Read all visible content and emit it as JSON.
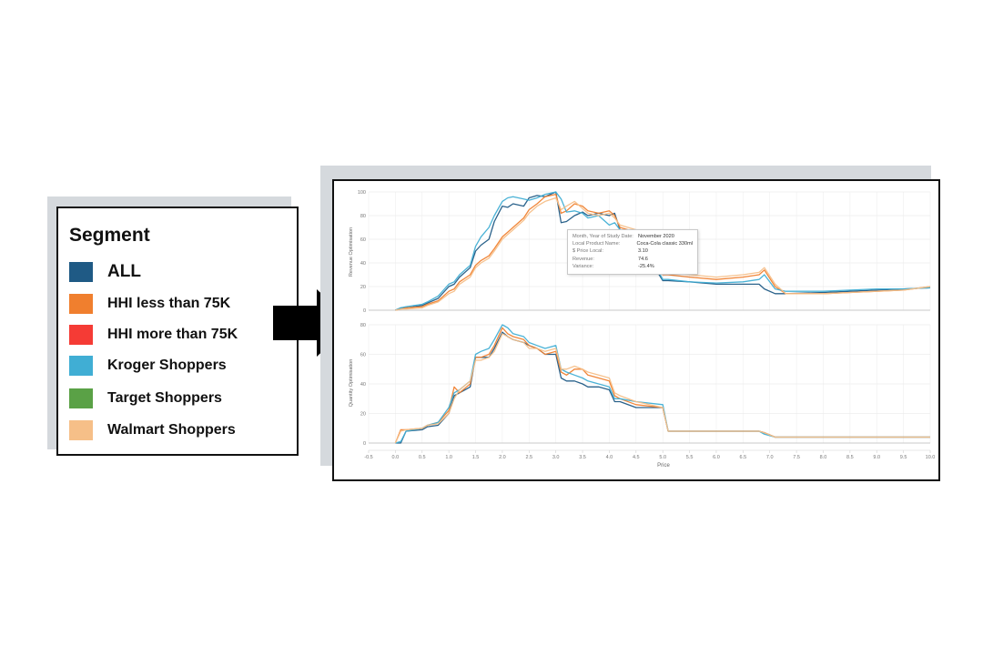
{
  "legend": {
    "title": "Segment",
    "items": [
      {
        "label": "ALL",
        "color": "#1f5a85"
      },
      {
        "label": "HHI less than 75K",
        "color": "#f07f2e"
      },
      {
        "label": "HHI more than 75K",
        "color": "#f53b35"
      },
      {
        "label": "Kroger Shoppers",
        "color": "#40aed4"
      },
      {
        "label": "Target Shoppers",
        "color": "#5aa146"
      },
      {
        "label": "Walmart Shoppers",
        "color": "#f6bf88"
      }
    ]
  },
  "tooltip": {
    "rows": [
      {
        "key": "Month, Year of Study Date:",
        "value": "November 2020"
      },
      {
        "key": "Local Product Name:",
        "value": "Coca-Cola classic 330ml"
      },
      {
        "key": "$ Price Local:",
        "value": "3.10"
      },
      {
        "key": "Revenue:",
        "value": "74.6"
      },
      {
        "key": "Variance:",
        "value": "-25.4%"
      }
    ]
  },
  "chart_data": [
    {
      "type": "line",
      "ylabel": "Revenue Optimisation",
      "xlim": [
        -0.5,
        10.0
      ],
      "ylim": [
        0,
        100
      ],
      "yticks": [
        0,
        20,
        40,
        60,
        80,
        100
      ],
      "grid": true,
      "x": [
        0.0,
        0.1,
        0.2,
        0.5,
        0.6,
        0.8,
        1.0,
        1.1,
        1.2,
        1.4,
        1.5,
        1.6,
        1.75,
        1.85,
        2.0,
        2.1,
        2.2,
        2.4,
        2.5,
        2.65,
        2.8,
        3.0,
        3.1,
        3.2,
        3.35,
        3.5,
        3.6,
        3.8,
        4.0,
        4.1,
        4.2,
        4.5,
        5.0,
        5.1,
        5.5,
        6.0,
        6.5,
        6.8,
        6.9,
        7.1,
        7.3,
        8.0,
        8.5,
        9.0,
        9.5,
        10.0
      ],
      "series": [
        {
          "name": "ALL",
          "color": "#1f5a85",
          "values": [
            0,
            2,
            2,
            4,
            6,
            10,
            20,
            22,
            28,
            36,
            50,
            55,
            60,
            75,
            88,
            87,
            90,
            88,
            95,
            97,
            96,
            100,
            74,
            75,
            80,
            83,
            80,
            82,
            80,
            82,
            68,
            62,
            25,
            25,
            24,
            22,
            22,
            22,
            18,
            14,
            14,
            15,
            16,
            17,
            18,
            19
          ]
        },
        {
          "name": "HHI less than 75K",
          "color": "#f07f2e",
          "values": [
            0,
            1,
            2,
            3,
            5,
            8,
            16,
            18,
            24,
            30,
            38,
            42,
            46,
            52,
            62,
            66,
            70,
            78,
            85,
            90,
            96,
            98,
            82,
            84,
            90,
            88,
            84,
            82,
            84,
            80,
            70,
            66,
            30,
            30,
            28,
            26,
            28,
            30,
            34,
            20,
            14,
            14,
            15,
            16,
            17,
            20
          ]
        },
        {
          "name": "Kroger Shoppers",
          "color": "#40aed4",
          "values": [
            0,
            2,
            3,
            5,
            7,
            12,
            22,
            24,
            30,
            38,
            54,
            62,
            70,
            80,
            92,
            95,
            96,
            94,
            93,
            95,
            98,
            100,
            94,
            83,
            84,
            82,
            78,
            80,
            72,
            74,
            68,
            66,
            26,
            26,
            24,
            23,
            24,
            26,
            30,
            18,
            16,
            16,
            17,
            18,
            18,
            19
          ]
        },
        {
          "name": "Walmart Shoppers",
          "color": "#f6bf88",
          "values": [
            0,
            1,
            1,
            2,
            4,
            7,
            14,
            16,
            22,
            28,
            36,
            40,
            44,
            50,
            60,
            64,
            68,
            76,
            82,
            88,
            92,
            95,
            85,
            88,
            92,
            86,
            82,
            80,
            82,
            78,
            72,
            68,
            32,
            32,
            30,
            28,
            30,
            32,
            36,
            22,
            14,
            14,
            15,
            16,
            17,
            20
          ]
        }
      ]
    },
    {
      "type": "line",
      "xlabel": "Price",
      "ylabel": "Quantity Optimisation",
      "xlim": [
        -0.5,
        10.0
      ],
      "ylim": [
        0,
        80
      ],
      "yticks": [
        0,
        20,
        40,
        60,
        80
      ],
      "xticks": [
        -0.5,
        0.0,
        0.5,
        1.0,
        1.5,
        2.0,
        2.5,
        3.0,
        3.5,
        4.0,
        4.5,
        5.0,
        5.5,
        6.0,
        6.5,
        7.0,
        7.5,
        8.0,
        8.5,
        9.0,
        9.5,
        10.0
      ],
      "xtick_labels": [
        "-0.5",
        "0.0",
        "0.5",
        "1.0",
        "1.5",
        "2.0",
        "2.5",
        "3.0",
        "3.5",
        "4.0",
        "4.5",
        "5.0",
        "5.5",
        "6.0",
        "6.5",
        "7.0",
        "7.5",
        "8.0",
        "8.5",
        "9.0",
        "9.5",
        "10.0"
      ],
      "grid": true,
      "x": [
        0.0,
        0.1,
        0.2,
        0.5,
        0.6,
        0.8,
        1.0,
        1.1,
        1.2,
        1.4,
        1.5,
        1.6,
        1.75,
        1.85,
        2.0,
        2.1,
        2.2,
        2.4,
        2.5,
        2.65,
        2.8,
        3.0,
        3.1,
        3.2,
        3.35,
        3.5,
        3.6,
        3.8,
        4.0,
        4.1,
        4.2,
        4.5,
        5.0,
        5.1,
        5.5,
        6.0,
        6.5,
        6.8,
        6.9,
        7.1,
        7.3,
        8.0,
        8.5,
        9.0,
        9.5,
        10.0
      ],
      "series": [
        {
          "name": "ALL",
          "color": "#1f5a85",
          "values": [
            0,
            0,
            8,
            9,
            11,
            12,
            20,
            32,
            34,
            38,
            58,
            58,
            58,
            64,
            75,
            72,
            70,
            68,
            66,
            64,
            60,
            60,
            44,
            42,
            42,
            40,
            38,
            38,
            36,
            28,
            28,
            24,
            24,
            8,
            8,
            8,
            8,
            8,
            7,
            4,
            4,
            4,
            4,
            4,
            4,
            4
          ]
        },
        {
          "name": "HHI less than 75K",
          "color": "#f07f2e",
          "values": [
            0,
            9,
            9,
            10,
            12,
            14,
            22,
            38,
            34,
            40,
            58,
            58,
            60,
            66,
            78,
            74,
            72,
            70,
            66,
            64,
            60,
            62,
            48,
            46,
            50,
            50,
            46,
            44,
            42,
            32,
            30,
            26,
            24,
            8,
            8,
            8,
            8,
            8,
            7,
            4,
            4,
            4,
            4,
            4,
            4,
            4
          ]
        },
        {
          "name": "Kroger Shoppers",
          "color": "#40aed4",
          "values": [
            0,
            1,
            8,
            10,
            12,
            14,
            24,
            34,
            36,
            42,
            60,
            62,
            64,
            70,
            80,
            78,
            74,
            72,
            68,
            66,
            64,
            66,
            50,
            48,
            46,
            44,
            42,
            40,
            38,
            30,
            30,
            28,
            26,
            8,
            8,
            8,
            8,
            8,
            6,
            4,
            4,
            4,
            4,
            4,
            4,
            4
          ]
        },
        {
          "name": "Walmart Shoppers",
          "color": "#f6bf88",
          "values": [
            0,
            8,
            9,
            10,
            12,
            13,
            20,
            30,
            36,
            42,
            56,
            56,
            58,
            62,
            74,
            72,
            70,
            68,
            64,
            64,
            62,
            64,
            50,
            50,
            52,
            50,
            48,
            46,
            44,
            34,
            32,
            28,
            24,
            8,
            8,
            8,
            8,
            8,
            7,
            4,
            4,
            4,
            4,
            4,
            4,
            4
          ]
        }
      ]
    }
  ]
}
